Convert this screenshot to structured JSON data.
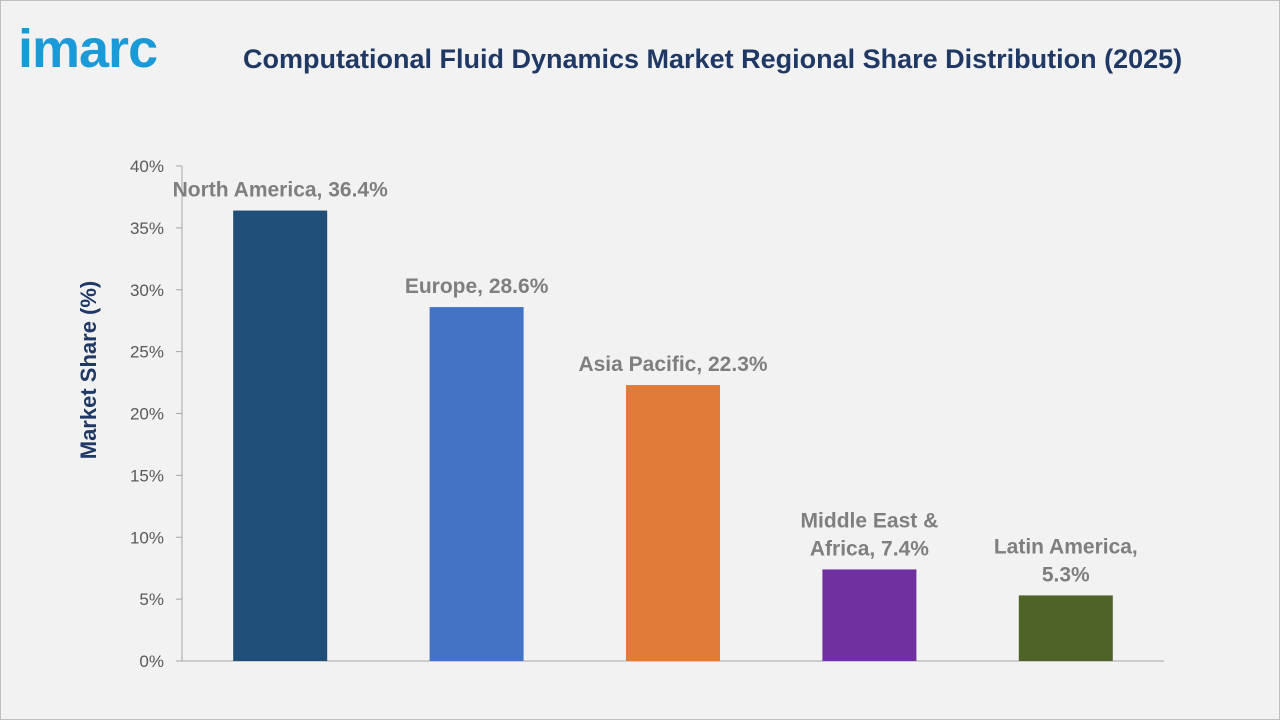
{
  "logo": {
    "text": "imarc"
  },
  "chart_data": {
    "type": "bar",
    "title": "Computational Fluid Dynamics Market Regional Share Distribution (2025)",
    "xlabel": "",
    "ylabel": "Market Share (%)",
    "ylim": [
      0,
      40
    ],
    "yticks": [
      "0%",
      "5%",
      "10%",
      "15%",
      "20%",
      "25%",
      "30%",
      "35%",
      "40%"
    ],
    "grid": false,
    "categories": [
      "North America",
      "Europe",
      "Asia Pacific",
      "Middle East & Africa",
      "Latin America"
    ],
    "values": [
      36.4,
      28.6,
      22.3,
      7.4,
      5.3
    ],
    "colors": [
      "#1f4e79",
      "#4472c4",
      "#e07b39",
      "#7030a0",
      "#4f6228"
    ],
    "data_labels": [
      [
        "North America, 36.4%"
      ],
      [
        "Europe, 28.6%"
      ],
      [
        "Asia Pacific, 22.3%"
      ],
      [
        "Middle East &",
        "Africa, 7.4%"
      ],
      [
        "Latin America,",
        "5.3%"
      ]
    ]
  }
}
